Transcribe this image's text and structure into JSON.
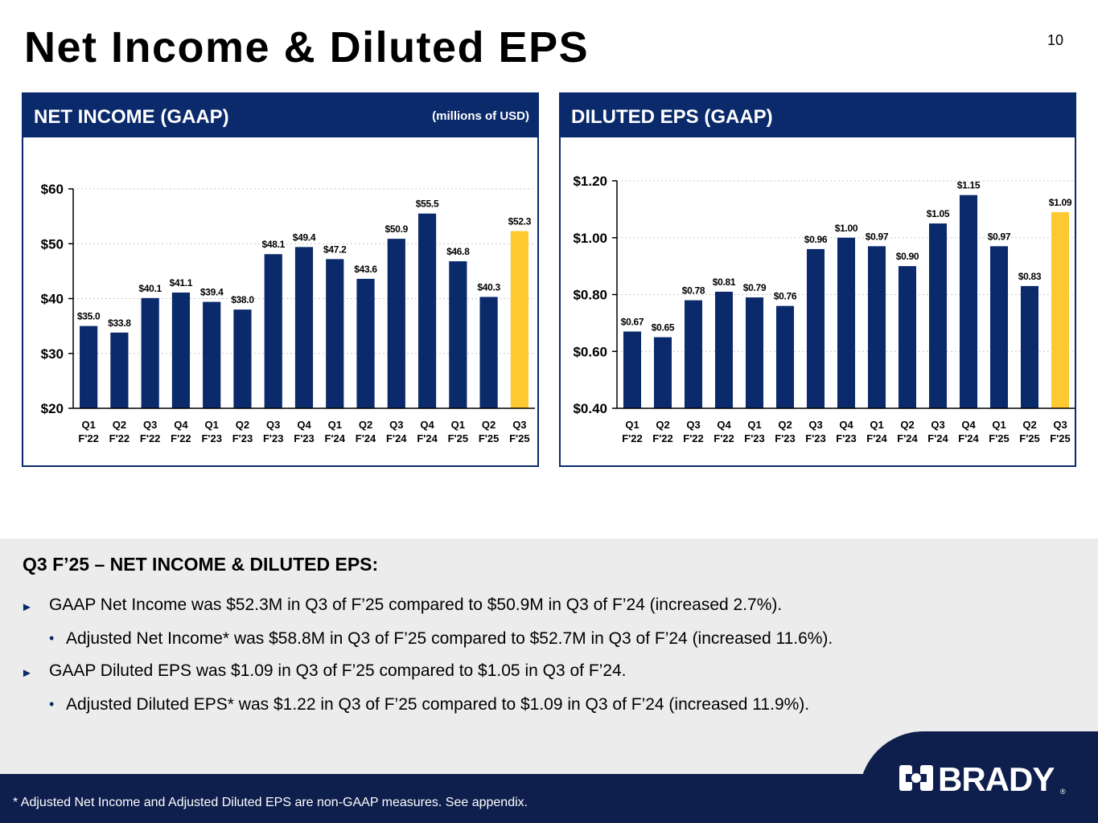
{
  "page": {
    "title": "Net Income & Diluted EPS",
    "page_number": "10"
  },
  "colors": {
    "navy": "#0b2a6b",
    "highlight": "#fdc830",
    "footer": "#0f1f4d"
  },
  "net_income_panel": {
    "title": "NET INCOME (GAAP)",
    "note": "(millions of USD)"
  },
  "eps_panel": {
    "title": "DILUTED EPS (GAAP)"
  },
  "chart_data": [
    {
      "type": "bar",
      "title": "NET INCOME (GAAP)",
      "unit": "millions of USD",
      "categories": [
        "Q1 F'22",
        "Q2 F'22",
        "Q3 F'22",
        "Q4 F'22",
        "Q1 F'23",
        "Q2 F'23",
        "Q3 F'23",
        "Q4 F'23",
        "Q1 F'24",
        "Q2 F'24",
        "Q3 F'24",
        "Q4 F'24",
        "Q1 F'25",
        "Q2 F'25",
        "Q3 F'25"
      ],
      "category_lines": [
        [
          "Q1",
          "F'22"
        ],
        [
          "Q2",
          "F'22"
        ],
        [
          "Q3",
          "F'22"
        ],
        [
          "Q4",
          "F'22"
        ],
        [
          "Q1",
          "F'23"
        ],
        [
          "Q2",
          "F'23"
        ],
        [
          "Q3",
          "F'23"
        ],
        [
          "Q4",
          "F'23"
        ],
        [
          "Q1",
          "F'24"
        ],
        [
          "Q2",
          "F'24"
        ],
        [
          "Q3",
          "F'24"
        ],
        [
          "Q4",
          "F'24"
        ],
        [
          "Q1",
          "F'25"
        ],
        [
          "Q2",
          "F'25"
        ],
        [
          "Q3",
          "F'25"
        ]
      ],
      "values": [
        35.0,
        33.8,
        40.1,
        41.1,
        39.4,
        38.0,
        48.1,
        49.4,
        47.2,
        43.6,
        50.9,
        55.5,
        46.8,
        40.3,
        52.3
      ],
      "value_labels": [
        "$35.0",
        "$33.8",
        "$40.1",
        "$41.1",
        "$39.4",
        "$38.0",
        "$48.1",
        "$49.4",
        "$47.2",
        "$43.6",
        "$50.9",
        "$55.5",
        "$46.8",
        "$40.3",
        "$52.3"
      ],
      "highlight_index": 14,
      "ylim": [
        20,
        60
      ],
      "yticks": [
        20,
        30,
        40,
        50,
        60
      ],
      "ytick_labels": [
        "$20",
        "$30",
        "$40",
        "$50",
        "$60"
      ],
      "grid": true
    },
    {
      "type": "bar",
      "title": "DILUTED EPS (GAAP)",
      "categories": [
        "Q1 F'22",
        "Q2 F'22",
        "Q3 F'22",
        "Q4 F'22",
        "Q1 F'23",
        "Q2 F'23",
        "Q3 F'23",
        "Q4 F'23",
        "Q1 F'24",
        "Q2 F'24",
        "Q3 F'24",
        "Q4 F'24",
        "Q1 F'25",
        "Q2 F'25",
        "Q3 F'25"
      ],
      "category_lines": [
        [
          "Q1",
          "F'22"
        ],
        [
          "Q2",
          "F'22"
        ],
        [
          "Q3",
          "F'22"
        ],
        [
          "Q4",
          "F'22"
        ],
        [
          "Q1",
          "F'23"
        ],
        [
          "Q2",
          "F'23"
        ],
        [
          "Q3",
          "F'23"
        ],
        [
          "Q4",
          "F'23"
        ],
        [
          "Q1",
          "F'24"
        ],
        [
          "Q2",
          "F'24"
        ],
        [
          "Q3",
          "F'24"
        ],
        [
          "Q4",
          "F'24"
        ],
        [
          "Q1",
          "F'25"
        ],
        [
          "Q2",
          "F'25"
        ],
        [
          "Q3",
          "F'25"
        ]
      ],
      "values": [
        0.67,
        0.65,
        0.78,
        0.81,
        0.79,
        0.76,
        0.96,
        1.0,
        0.97,
        0.9,
        1.05,
        1.15,
        0.97,
        0.83,
        1.09
      ],
      "value_labels": [
        "$0.67",
        "$0.65",
        "$0.78",
        "$0.81",
        "$0.79",
        "$0.76",
        "$0.96",
        "$1.00",
        "$0.97",
        "$0.90",
        "$1.05",
        "$1.15",
        "$0.97",
        "$0.83",
        "$1.09"
      ],
      "highlight_index": 14,
      "ylim": [
        0.4,
        1.2
      ],
      "yticks": [
        0.4,
        0.6,
        0.8,
        1.0,
        1.2
      ],
      "ytick_labels": [
        "$0.40",
        "$0.60",
        "$0.80",
        "$1.00",
        "$1.20"
      ],
      "grid": true
    }
  ],
  "summary": {
    "heading": "Q3 F’25 – NET INCOME & DILUTED EPS:",
    "arrow_glyph": "►",
    "dot_glyph": "•",
    "bullets": [
      "GAAP Net Income was $52.3M in Q3 of F’25 compared to $50.9M in Q3 of F’24 (increased 2.7%).",
      "Adjusted Net Income* was $58.8M in Q3 of F’25 compared to $52.7M in Q3 of F’24 (increased 11.6%).",
      "GAAP Diluted EPS was $1.09 in Q3 of F’25 compared to $1.05 in Q3 of F’24.",
      "Adjusted Diluted EPS* was $1.22 in Q3 of F’25 compared to $1.09 in Q3 of F’24 (increased 11.9%)."
    ]
  },
  "footer": {
    "note": "* Adjusted Net Income and Adjusted Diluted EPS are non-GAAP measures.  See appendix.",
    "logo_text": "BRADY",
    "registered_mark": "®"
  }
}
